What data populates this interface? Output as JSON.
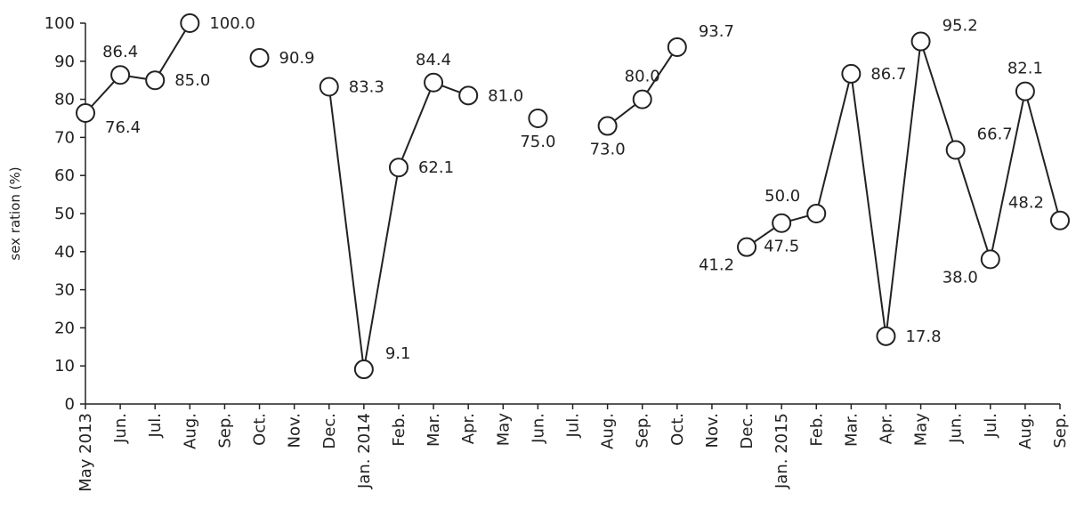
{
  "chart_data": {
    "type": "line",
    "title": "",
    "xlabel": "",
    "ylabel": "sex ration (%)",
    "ylim": [
      0,
      100
    ],
    "yticks": [
      0,
      10,
      20,
      30,
      40,
      50,
      60,
      70,
      80,
      90,
      100
    ],
    "grid": false,
    "categories": [
      "May 2013",
      "Jun.",
      "Jul.",
      "Aug.",
      "Sep.",
      "Oct.",
      "Nov.",
      "Dec.",
      "Jan. 2014",
      "Feb.",
      "Mar.",
      "Apr.",
      "May",
      "Jun.",
      "Jul.",
      "Aug.",
      "Sep.",
      "Oct.",
      "Nov.",
      "Dec.",
      "Jan. 2015",
      "Feb.",
      "Mar.",
      "Apr.",
      "May",
      "Jun.",
      "Jul.",
      "Aug.",
      "Sep."
    ],
    "series": [
      {
        "values": [
          76.4,
          86.4,
          85.0,
          100.0,
          null,
          90.9,
          null,
          83.3,
          9.1,
          62.1,
          84.4,
          81.0,
          null,
          75.0,
          null,
          73.0,
          80.0,
          93.7,
          null,
          41.2,
          47.5,
          50.0,
          86.7,
          17.8,
          95.2,
          66.7,
          38.0,
          82.1,
          48.2
        ],
        "labels": [
          "76.4",
          "86.4",
          "85.0",
          "100.0",
          null,
          "90.9",
          null,
          "83.3",
          "9.1",
          "62.1",
          "84.4",
          "81.0",
          null,
          "75.0",
          null,
          "73.0",
          "80.0",
          "93.7",
          null,
          "41.2",
          "47.5",
          "50.0",
          "86.7",
          "17.8",
          "95.2",
          "66.7",
          "38.0",
          "82.1",
          "48.2"
        ],
        "label_pos": [
          "br",
          "t",
          "r",
          "r",
          null,
          "r",
          null,
          "r",
          "tr",
          "r",
          "t",
          "r",
          null,
          "b",
          null,
          "b",
          "t",
          "tr",
          null,
          "bl",
          "b",
          "tl",
          "r",
          "r",
          "tr",
          "tr",
          "bl",
          "t",
          "tl"
        ]
      }
    ]
  }
}
